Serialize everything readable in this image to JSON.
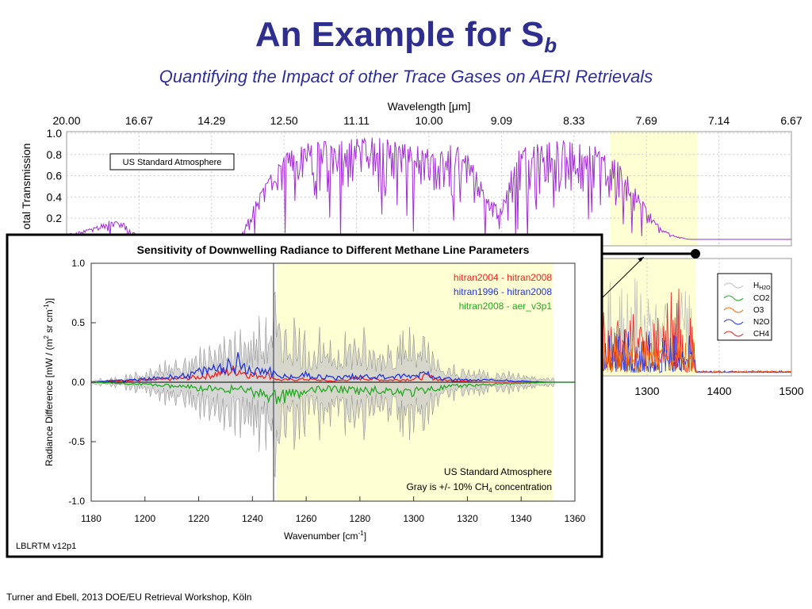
{
  "slide": {
    "title_main": "An Example for S",
    "title_sub": "b",
    "subtitle": "Quantifying the Impact of other Trace Gases on AERI Retrievals",
    "footer": "Turner and Ebell, 2013 DOE/EU Retrieval Workshop, Köln"
  },
  "colors": {
    "title": "#2e2e8f",
    "transmission": "#a22cd6",
    "highlight": "#ffffd4",
    "h2o": "#c0c0c0",
    "co2": "#22aa22",
    "o3": "#ff6600",
    "n2o": "#2233dd",
    "ch4": "#ee2222"
  },
  "chart_data": [
    {
      "type": "line",
      "panel": "top-transmission",
      "xlabel_top": "Wavelength [μm]",
      "top_ticks": [
        "20.00",
        "16.67",
        "14.29",
        "12.50",
        "11.11",
        "10.00",
        "9.09",
        "8.33",
        "7.69",
        "7.14",
        "6.67"
      ],
      "xlim": [
        500,
        1500
      ],
      "ylabel": "otal Transmission",
      "ylim": [
        0,
        1.0
      ],
      "y_ticks": [
        "1.0",
        "0.8",
        "0.6",
        "0.4",
        "0.2"
      ],
      "annotation": "US Standard Atmosphere",
      "highlight_range": [
        1250,
        1370
      ],
      "series": [
        {
          "x": [
            500,
            520,
            540,
            560,
            580,
            600,
            620,
            640,
            660,
            680,
            700,
            720,
            740,
            760,
            780,
            800,
            820,
            840,
            860,
            880,
            900,
            920,
            940,
            960,
            980,
            1000,
            1020,
            1040,
            1060,
            1080,
            1100,
            1120,
            1140,
            1160,
            1180,
            1200,
            1220,
            1240,
            1260,
            1280,
            1300,
            1320,
            1340,
            1360,
            1380,
            1400
          ],
          "y": [
            0.05,
            0.08,
            0.12,
            0.18,
            0.15,
            0.02,
            0.0,
            0.0,
            0.0,
            0.0,
            0.0,
            0.0,
            0.02,
            0.35,
            0.6,
            0.8,
            0.88,
            0.92,
            0.94,
            0.95,
            0.96,
            0.96,
            0.95,
            0.93,
            0.9,
            0.85,
            0.88,
            0.9,
            0.75,
            0.4,
            0.3,
            0.82,
            0.9,
            0.92,
            0.93,
            0.92,
            0.9,
            0.85,
            0.75,
            0.55,
            0.3,
            0.1,
            0.03,
            0.0,
            0.0,
            0.0
          ]
        }
      ]
    },
    {
      "type": "line",
      "panel": "right-gas-contributions",
      "x_ticks": [
        "1300",
        "1400",
        "1500"
      ],
      "legend": [
        "H2O",
        "CO2",
        "O3",
        "N2O",
        "CH4"
      ],
      "legend_placement": "right"
    },
    {
      "type": "line",
      "panel": "inset-sensitivity",
      "title": "Sensitivity of Downwelling Radiance to Different Methane Line Parameters",
      "xlabel": "Wavenumber [cm",
      "xlabel_sup": "-1",
      "ylabel": "Radiance Difference [mW / (m",
      "ylabel_sup1": "2",
      "ylabel_mid": " sr cm",
      "ylabel_sup2": "-1",
      "ylabel_end": ")]",
      "xlim": [
        1180,
        1360
      ],
      "ylim": [
        -1.0,
        1.0
      ],
      "x_ticks": [
        1180,
        1200,
        1220,
        1240,
        1260,
        1280,
        1300,
        1320,
        1340,
        1360
      ],
      "y_ticks": [
        "1.0",
        "0.5",
        "0.0",
        "-0.5",
        "-1.0"
      ],
      "highlight_range": [
        1249,
        1352
      ],
      "series": [
        {
          "name": "hitran2004 - hitran2008",
          "color": "#ee2222",
          "x": [
            1180,
            1190,
            1200,
            1210,
            1220,
            1230,
            1235,
            1240,
            1245,
            1250,
            1260,
            1270,
            1280,
            1290,
            1300,
            1305,
            1310,
            1320,
            1330,
            1340,
            1350,
            1360
          ],
          "y": [
            0,
            0.01,
            0.02,
            0.03,
            0.05,
            0.1,
            0.12,
            0.06,
            0.08,
            0.02,
            0.03,
            0.01,
            0.04,
            0.02,
            0.03,
            0.06,
            0.02,
            0.01,
            0.0,
            0.0,
            0.0,
            0
          ]
        },
        {
          "name": "hitran1996 - hitran2008",
          "color": "#2233dd",
          "x": [
            1180,
            1190,
            1200,
            1210,
            1220,
            1230,
            1235,
            1240,
            1245,
            1250,
            1260,
            1270,
            1280,
            1290,
            1300,
            1305,
            1310,
            1320,
            1330,
            1340,
            1350,
            1360
          ],
          "y": [
            0,
            0.02,
            0.03,
            0.05,
            0.09,
            0.15,
            0.2,
            0.1,
            0.14,
            0.05,
            0.07,
            0.04,
            0.06,
            0.05,
            0.06,
            0.1,
            0.04,
            0.02,
            0.02,
            0.01,
            0.0,
            0
          ]
        },
        {
          "name": "hitran2008 - aer_v3p1",
          "color": "#22aa22",
          "x": [
            1180,
            1190,
            1200,
            1210,
            1220,
            1230,
            1235,
            1240,
            1245,
            1250,
            1260,
            1270,
            1280,
            1290,
            1300,
            1305,
            1310,
            1320,
            1330,
            1340,
            1350,
            1360
          ],
          "y": [
            0,
            -0.01,
            -0.02,
            -0.04,
            -0.06,
            -0.08,
            -0.05,
            -0.1,
            -0.12,
            -0.15,
            -0.1,
            -0.06,
            -0.09,
            -0.08,
            -0.1,
            -0.07,
            -0.06,
            -0.03,
            -0.02,
            -0.01,
            0.0,
            0
          ]
        }
      ],
      "gray_envelope": {
        "x": [
          1180,
          1190,
          1200,
          1210,
          1220,
          1225,
          1230,
          1235,
          1240,
          1245,
          1248,
          1255,
          1260,
          1270,
          1280,
          1285,
          1290,
          1300,
          1305,
          1310,
          1320,
          1330,
          1340,
          1350,
          1360
        ],
        "y": [
          0.03,
          0.05,
          0.12,
          0.25,
          0.35,
          0.4,
          0.5,
          0.55,
          0.6,
          0.7,
          1.0,
          0.6,
          0.5,
          0.45,
          0.55,
          0.4,
          0.5,
          0.6,
          0.45,
          0.2,
          0.15,
          0.12,
          0.1,
          0.05,
          0.02
        ]
      },
      "annotations": [
        "US Standard Atmosphere",
        "Gray is +/- 10% CH",
        "4",
        " concentration"
      ],
      "footer_label": "LBLRTM v12p1"
    }
  ]
}
